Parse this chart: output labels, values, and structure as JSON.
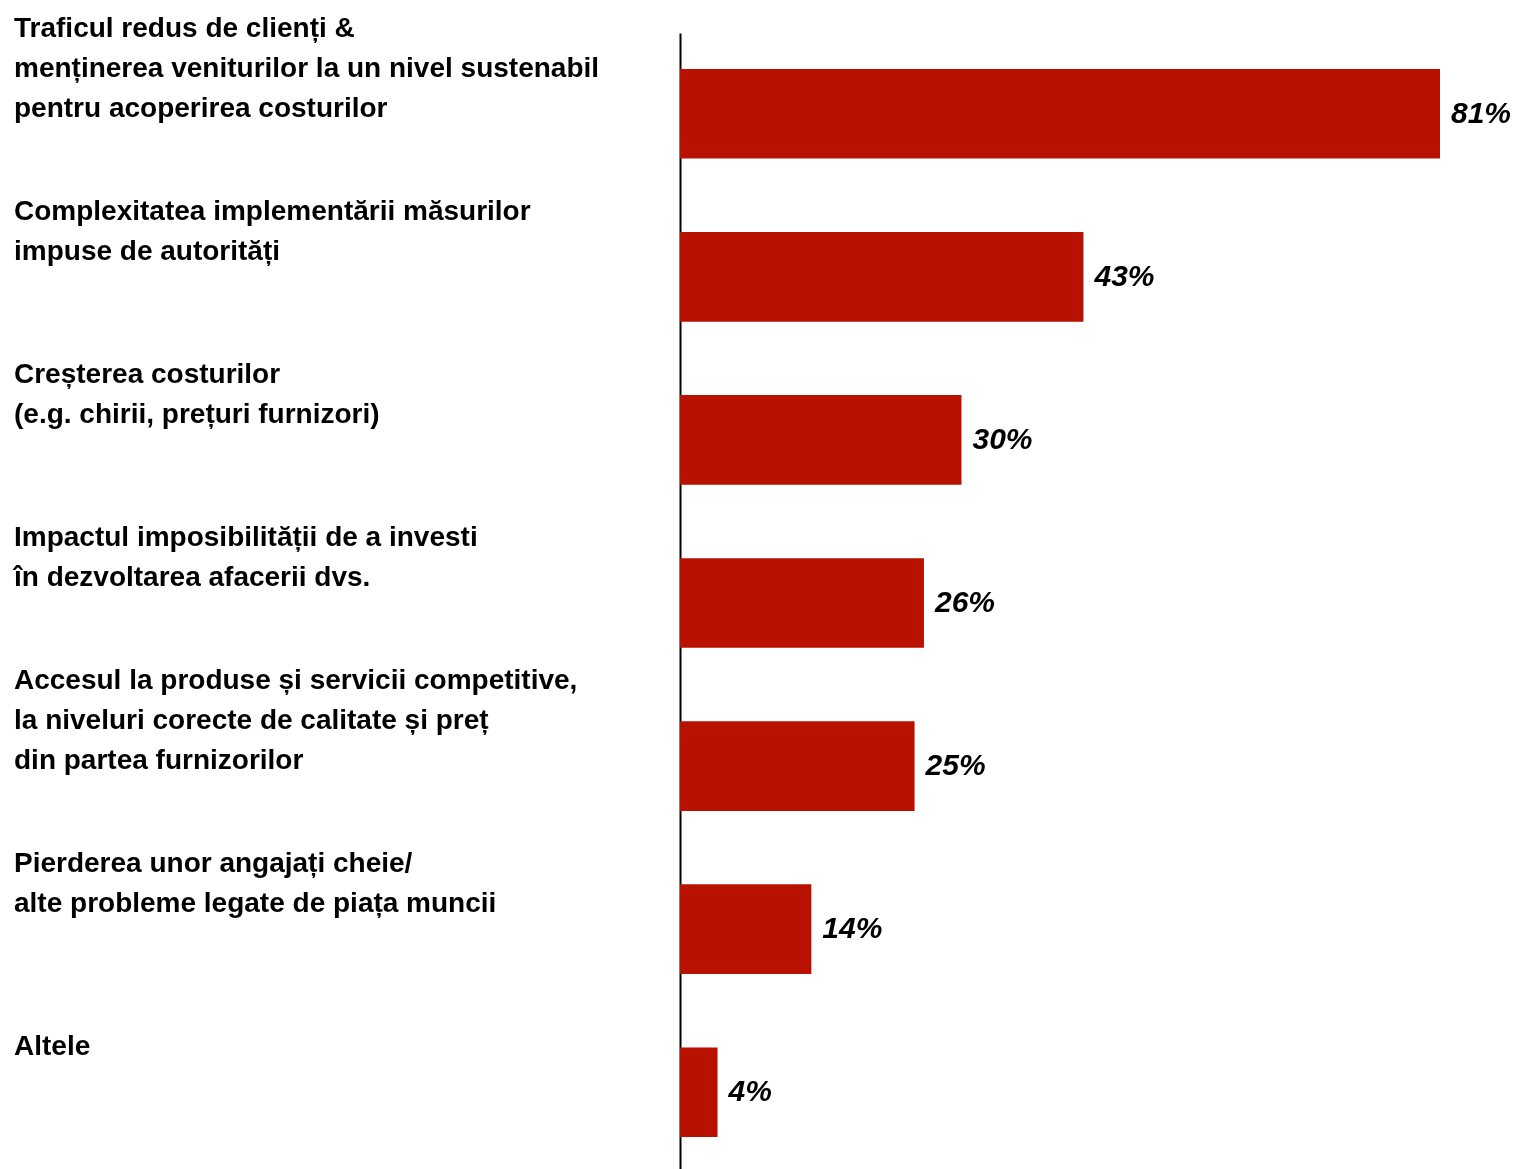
{
  "chart_data": {
    "type": "bar",
    "orientation": "horizontal",
    "categories": [
      "Traficul redus de clienți &\nmenținerea veniturilor la un nivel sustenabil\npentru acoperirea costurilor",
      "Complexitatea implementării măsurilor\nimpuse de autorități",
      "Creșterea costurilor\n(e.g. chirii, prețuri furnizori)",
      "Impactul imposibilității de a investi\nîn dezvoltarea afacerii dvs.",
      "Accesul la produse și servicii competitive,\nla niveluri corecte de calitate și preț\ndin partea furnizorilor",
      "Pierderea unor angajați cheie/\nalte probleme legate de piața muncii",
      "Altele"
    ],
    "values": [
      81,
      43,
      30,
      26,
      25,
      14,
      4
    ],
    "value_labels": [
      "81%",
      "43%",
      "30%",
      "26%",
      "25%",
      "14%",
      "4%"
    ],
    "color": "#b91100"
  }
}
